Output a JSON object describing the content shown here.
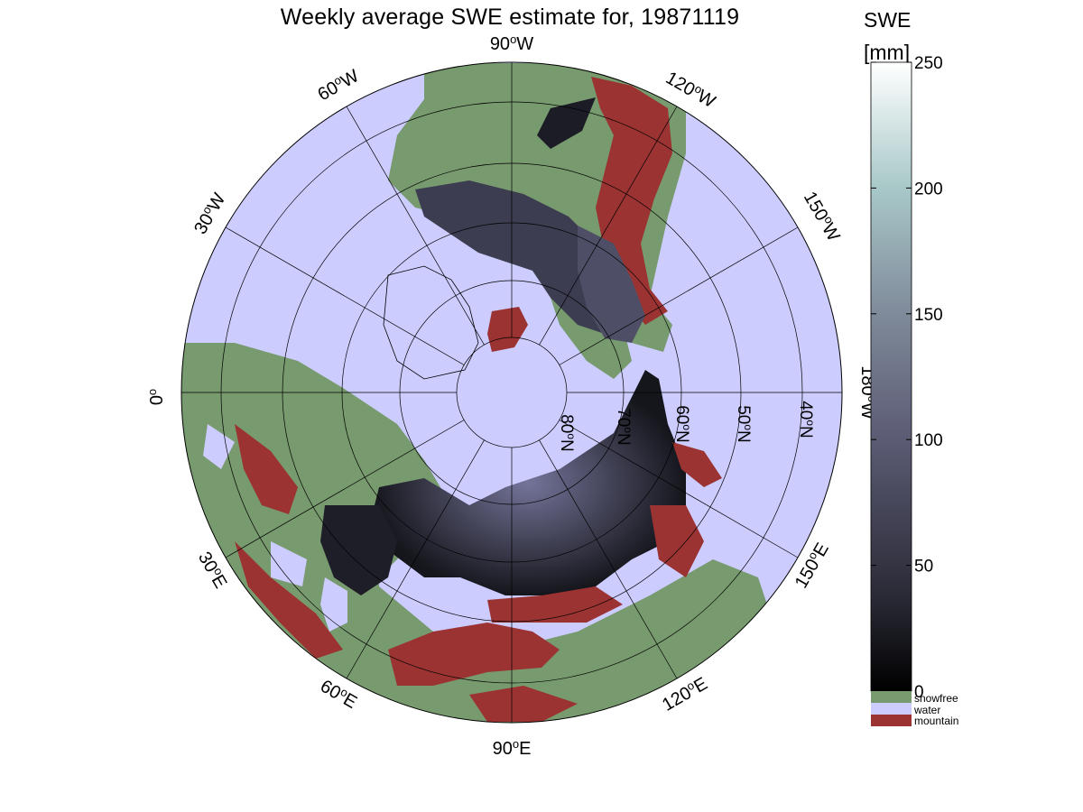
{
  "title": "Weekly average SWE estimate for, 19871119",
  "colorbar": {
    "title": "SWE",
    "unit": "[mm]",
    "ticks": [
      "0",
      "50",
      "100",
      "150",
      "200",
      "250"
    ],
    "range": [
      0,
      250
    ],
    "categories": [
      {
        "label": "snowfree",
        "color": "#779a6e"
      },
      {
        "label": "water",
        "color": "#ccccff"
      },
      {
        "label": "mountain",
        "color": "#9b3332"
      }
    ]
  },
  "map": {
    "projection": "north polar stereographic",
    "longitude_labels": [
      {
        "text": "90",
        "suffix": "W",
        "lon": "90W"
      },
      {
        "text": "120",
        "suffix": "W",
        "lon": "120W"
      },
      {
        "text": "150",
        "suffix": "W",
        "lon": "150W"
      },
      {
        "text": "180",
        "suffix": "W",
        "lon": "180W"
      },
      {
        "text": "150",
        "suffix": "E",
        "lon": "150E"
      },
      {
        "text": "120",
        "suffix": "E",
        "lon": "120E"
      },
      {
        "text": "90",
        "suffix": "E",
        "lon": "90E"
      },
      {
        "text": "60",
        "suffix": "E",
        "lon": "60E"
      },
      {
        "text": "30",
        "suffix": "E",
        "lon": "30E"
      },
      {
        "text": "0",
        "suffix": "",
        "lon": "0"
      },
      {
        "text": "30",
        "suffix": "W",
        "lon": "30W"
      },
      {
        "text": "60",
        "suffix": "W",
        "lon": "60W"
      }
    ],
    "latitude_labels": [
      {
        "text": "80",
        "suffix": "N"
      },
      {
        "text": "70",
        "suffix": "N"
      },
      {
        "text": "60",
        "suffix": "N"
      },
      {
        "text": "50",
        "suffix": "N"
      },
      {
        "text": "40",
        "suffix": "N"
      }
    ],
    "colors": {
      "ocean": "#ccccff",
      "snowfree": "#779a6e",
      "mountain": "#9b3332",
      "snow_low": "#15151c",
      "snow_mid": "#4a4a60",
      "snow_high": "#74749a"
    }
  }
}
